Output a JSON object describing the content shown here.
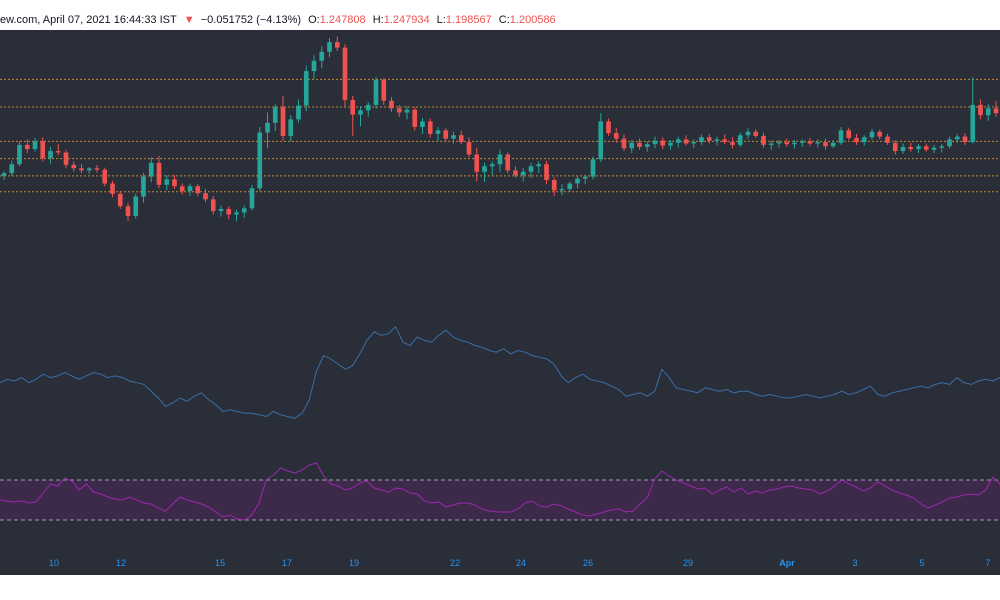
{
  "header": {
    "source": "ew.com, April 07, 2021 16:44:33 IST",
    "change_arrow": "▼",
    "change": "−0.051752 (−4.13%)",
    "o_label": "O:",
    "o_value": "1.247808",
    "h_label": "H:",
    "h_value": "1.247934",
    "l_label": "L:",
    "l_value": "1.198567",
    "c_label": "C:",
    "c_value": "1.200586"
  },
  "colors": {
    "background": "#2a2e39",
    "bull": "#26a69a",
    "bear": "#ef5350",
    "level_line": "#c98a2e",
    "indicator_line": "#3a6ea5",
    "rsi_line": "#9c27b0",
    "rsi_band": "#3d2a4a",
    "axis_text": "#2196f3"
  },
  "chart_data": [
    {
      "type": "candlestick",
      "x_axis_labels": [
        "10",
        "12",
        "15",
        "17",
        "19",
        "22",
        "24",
        "26",
        "29",
        "Apr",
        "3",
        "5",
        "7"
      ],
      "y_range": [
        0.93,
        1.31
      ],
      "horizontal_levels": [
        1.25,
        1.21,
        1.16,
        1.135,
        1.11,
        1.087
      ],
      "candles": [
        [
          1.11,
          1.117,
          1.104,
          1.114
        ],
        [
          1.114,
          1.132,
          1.11,
          1.127
        ],
        [
          1.127,
          1.16,
          1.124,
          1.155
        ],
        [
          1.155,
          1.163,
          1.143,
          1.149
        ],
        [
          1.149,
          1.165,
          1.145,
          1.16
        ],
        [
          1.16,
          1.166,
          1.131,
          1.136
        ],
        [
          1.136,
          1.152,
          1.128,
          1.146
        ],
        [
          1.146,
          1.156,
          1.14,
          1.144
        ],
        [
          1.144,
          1.148,
          1.121,
          1.126
        ],
        [
          1.126,
          1.131,
          1.116,
          1.121
        ],
        [
          1.121,
          1.127,
          1.114,
          1.118
        ],
        [
          1.118,
          1.123,
          1.113,
          1.121
        ],
        [
          1.121,
          1.126,
          1.115,
          1.119
        ],
        [
          1.119,
          1.122,
          1.095,
          1.099
        ],
        [
          1.099,
          1.103,
          1.079,
          1.084
        ],
        [
          1.084,
          1.088,
          1.062,
          1.066
        ],
        [
          1.066,
          1.071,
          1.045,
          1.052
        ],
        [
          1.052,
          1.084,
          1.048,
          1.08
        ],
        [
          1.08,
          1.114,
          1.071,
          1.109
        ],
        [
          1.109,
          1.137,
          1.101,
          1.129
        ],
        [
          1.129,
          1.139,
          1.092,
          1.097
        ],
        [
          1.097,
          1.111,
          1.089,
          1.105
        ],
        [
          1.105,
          1.111,
          1.091,
          1.095
        ],
        [
          1.095,
          1.099,
          1.083,
          1.088
        ],
        [
          1.088,
          1.099,
          1.081,
          1.095
        ],
        [
          1.095,
          1.098,
          1.081,
          1.085
        ],
        [
          1.085,
          1.091,
          1.072,
          1.076
        ],
        [
          1.076,
          1.081,
          1.054,
          1.059
        ],
        [
          1.059,
          1.067,
          1.051,
          1.062
        ],
        [
          1.062,
          1.066,
          1.047,
          1.054
        ],
        [
          1.054,
          1.061,
          1.044,
          1.057
        ],
        [
          1.057,
          1.067,
          1.049,
          1.063
        ],
        [
          1.063,
          1.097,
          1.06,
          1.092
        ],
        [
          1.092,
          1.181,
          1.088,
          1.173
        ],
        [
          1.173,
          1.202,
          1.15,
          1.187
        ],
        [
          1.187,
          1.214,
          1.175,
          1.21
        ],
        [
          1.21,
          1.226,
          1.161,
          1.168
        ],
        [
          1.168,
          1.198,
          1.16,
          1.192
        ],
        [
          1.192,
          1.221,
          1.187,
          1.212
        ],
        [
          1.212,
          1.27,
          1.204,
          1.262
        ],
        [
          1.262,
          1.285,
          1.251,
          1.277
        ],
        [
          1.277,
          1.298,
          1.266,
          1.29
        ],
        [
          1.29,
          1.31,
          1.282,
          1.304
        ],
        [
          1.304,
          1.312,
          1.291,
          1.296
        ],
        [
          1.296,
          1.301,
          1.211,
          1.22
        ],
        [
          1.22,
          1.226,
          1.168,
          1.199
        ],
        [
          1.199,
          1.211,
          1.182,
          1.205
        ],
        [
          1.205,
          1.217,
          1.196,
          1.213
        ],
        [
          1.213,
          1.253,
          1.207,
          1.249
        ],
        [
          1.249,
          1.252,
          1.213,
          1.219
        ],
        [
          1.219,
          1.224,
          1.203,
          1.208
        ],
        [
          1.208,
          1.213,
          1.196,
          1.202
        ],
        [
          1.202,
          1.211,
          1.192,
          1.206
        ],
        [
          1.206,
          1.21,
          1.176,
          1.181
        ],
        [
          1.181,
          1.194,
          1.171,
          1.189
        ],
        [
          1.189,
          1.193,
          1.166,
          1.171
        ],
        [
          1.171,
          1.181,
          1.161,
          1.176
        ],
        [
          1.176,
          1.179,
          1.159,
          1.164
        ],
        [
          1.164,
          1.174,
          1.157,
          1.169
        ],
        [
          1.169,
          1.176,
          1.156,
          1.159
        ],
        [
          1.159,
          1.166,
          1.137,
          1.141
        ],
        [
          1.141,
          1.151,
          1.102,
          1.116
        ],
        [
          1.116,
          1.129,
          1.101,
          1.124
        ],
        [
          1.124,
          1.131,
          1.111,
          1.127
        ],
        [
          1.127,
          1.148,
          1.116,
          1.141
        ],
        [
          1.141,
          1.144,
          1.114,
          1.118
        ],
        [
          1.118,
          1.124,
          1.108,
          1.111
        ],
        [
          1.111,
          1.121,
          1.102,
          1.116
        ],
        [
          1.116,
          1.129,
          1.107,
          1.124
        ],
        [
          1.124,
          1.131,
          1.114,
          1.127
        ],
        [
          1.127,
          1.132,
          1.098,
          1.104
        ],
        [
          1.104,
          1.108,
          1.081,
          1.089
        ],
        [
          1.089,
          1.098,
          1.082,
          1.091
        ],
        [
          1.091,
          1.102,
          1.087,
          1.099
        ],
        [
          1.099,
          1.111,
          1.092,
          1.106
        ],
        [
          1.106,
          1.112,
          1.098,
          1.109
        ],
        [
          1.109,
          1.138,
          1.105,
          1.134
        ],
        [
          1.134,
          1.201,
          1.13,
          1.189
        ],
        [
          1.189,
          1.193,
          1.168,
          1.172
        ],
        [
          1.172,
          1.18,
          1.158,
          1.164
        ],
        [
          1.164,
          1.17,
          1.146,
          1.15
        ],
        [
          1.15,
          1.162,
          1.143,
          1.158
        ],
        [
          1.158,
          1.164,
          1.148,
          1.152
        ],
        [
          1.152,
          1.16,
          1.145,
          1.156
        ],
        [
          1.156,
          1.167,
          1.15,
          1.161
        ],
        [
          1.161,
          1.166,
          1.149,
          1.154
        ],
        [
          1.154,
          1.162,
          1.148,
          1.158
        ],
        [
          1.158,
          1.167,
          1.151,
          1.163
        ],
        [
          1.163,
          1.169,
          1.154,
          1.157
        ],
        [
          1.157,
          1.163,
          1.15,
          1.159
        ],
        [
          1.159,
          1.17,
          1.155,
          1.166
        ],
        [
          1.166,
          1.171,
          1.157,
          1.161
        ],
        [
          1.161,
          1.167,
          1.154,
          1.163
        ],
        [
          1.163,
          1.17,
          1.156,
          1.159
        ],
        [
          1.159,
          1.166,
          1.15,
          1.155
        ],
        [
          1.155,
          1.173,
          1.152,
          1.169
        ],
        [
          1.169,
          1.179,
          1.163,
          1.174
        ],
        [
          1.174,
          1.178,
          1.165,
          1.168
        ],
        [
          1.168,
          1.173,
          1.151,
          1.155
        ],
        [
          1.155,
          1.161,
          1.148,
          1.157
        ],
        [
          1.157,
          1.162,
          1.151,
          1.159
        ],
        [
          1.159,
          1.164,
          1.152,
          1.156
        ],
        [
          1.156,
          1.162,
          1.15,
          1.158
        ],
        [
          1.158,
          1.163,
          1.152,
          1.16
        ],
        [
          1.16,
          1.165,
          1.153,
          1.157
        ],
        [
          1.157,
          1.163,
          1.151,
          1.159
        ],
        [
          1.159,
          1.164,
          1.148,
          1.153
        ],
        [
          1.153,
          1.162,
          1.15,
          1.158
        ],
        [
          1.158,
          1.181,
          1.155,
          1.176
        ],
        [
          1.176,
          1.18,
          1.162,
          1.165
        ],
        [
          1.165,
          1.171,
          1.155,
          1.159
        ],
        [
          1.159,
          1.169,
          1.154,
          1.166
        ],
        [
          1.166,
          1.178,
          1.162,
          1.174
        ],
        [
          1.174,
          1.177,
          1.163,
          1.167
        ],
        [
          1.167,
          1.171,
          1.155,
          1.158
        ],
        [
          1.158,
          1.162,
          1.141,
          1.146
        ],
        [
          1.146,
          1.157,
          1.142,
          1.152
        ],
        [
          1.152,
          1.158,
          1.145,
          1.149
        ],
        [
          1.149,
          1.156,
          1.143,
          1.153
        ],
        [
          1.153,
          1.157,
          1.145,
          1.148
        ],
        [
          1.148,
          1.155,
          1.143,
          1.151
        ],
        [
          1.151,
          1.156,
          1.144,
          1.153
        ],
        [
          1.153,
          1.167,
          1.15,
          1.163
        ],
        [
          1.163,
          1.171,
          1.158,
          1.167
        ],
        [
          1.167,
          1.172,
          1.155,
          1.159
        ],
        [
          1.159,
          1.253,
          1.157,
          1.213
        ],
        [
          1.213,
          1.221,
          1.192,
          1.198
        ],
        [
          1.198,
          1.214,
          1.19,
          1.208
        ],
        [
          1.208,
          1.219,
          1.196,
          1.201
        ]
      ]
    },
    {
      "type": "line",
      "name": "",
      "values": [
        55,
        57,
        56,
        58,
        55,
        57,
        60,
        58,
        59,
        61,
        59,
        57,
        59,
        61,
        60,
        58,
        59,
        58,
        56,
        55,
        54,
        50,
        46,
        41,
        43,
        46,
        44,
        47,
        49,
        45,
        42,
        38,
        39,
        38,
        37,
        37,
        36,
        35,
        38,
        36,
        35,
        34,
        37,
        45,
        62,
        71,
        69,
        66,
        63,
        65,
        72,
        80,
        85,
        83,
        84,
        88,
        79,
        77,
        82,
        80,
        79,
        83,
        86,
        82,
        80,
        79,
        77,
        76,
        74,
        73,
        75,
        72,
        74,
        73,
        71,
        70,
        69,
        66,
        59,
        55,
        58,
        60,
        57,
        56,
        55,
        53,
        51,
        47,
        48,
        49,
        47,
        50,
        63,
        58,
        52,
        51,
        50,
        49,
        52,
        51,
        50,
        51,
        49,
        50,
        50,
        48,
        47,
        48,
        47,
        46,
        46,
        47,
        48,
        47,
        46,
        47,
        48,
        50,
        48,
        49,
        51,
        53,
        48,
        47,
        49,
        50,
        51,
        52,
        53,
        52,
        54,
        55,
        54,
        58,
        55,
        54,
        56,
        57,
        56,
        58
      ]
    },
    {
      "type": "line",
      "name": "",
      "band": [
        30,
        70
      ],
      "values": [
        50,
        49,
        48,
        49,
        47,
        48,
        57,
        66,
        64,
        72,
        69,
        60,
        66,
        58,
        56,
        53,
        51,
        50,
        53,
        50,
        47,
        46,
        42,
        39,
        46,
        53,
        50,
        48,
        46,
        43,
        38,
        33,
        35,
        31,
        30,
        35,
        47,
        70,
        75,
        82,
        79,
        77,
        80,
        85,
        87,
        74,
        66,
        64,
        60,
        62,
        67,
        69,
        62,
        60,
        58,
        62,
        61,
        57,
        56,
        49,
        47,
        48,
        43,
        45,
        47,
        47,
        45,
        41,
        39,
        38,
        38,
        38,
        41,
        47,
        49,
        44,
        43,
        46,
        44,
        41,
        38,
        35,
        34,
        36,
        38,
        40,
        41,
        38,
        39,
        46,
        53,
        71,
        79,
        74,
        70,
        67,
        64,
        61,
        62,
        56,
        60,
        63,
        58,
        62,
        56,
        59,
        57,
        60,
        61,
        63,
        64,
        62,
        61,
        60,
        56,
        59,
        64,
        70,
        66,
        63,
        59,
        62,
        68,
        64,
        60,
        57,
        55,
        52,
        46,
        42,
        45,
        48,
        52,
        53,
        55,
        56,
        55,
        60,
        73,
        66
      ]
    }
  ]
}
